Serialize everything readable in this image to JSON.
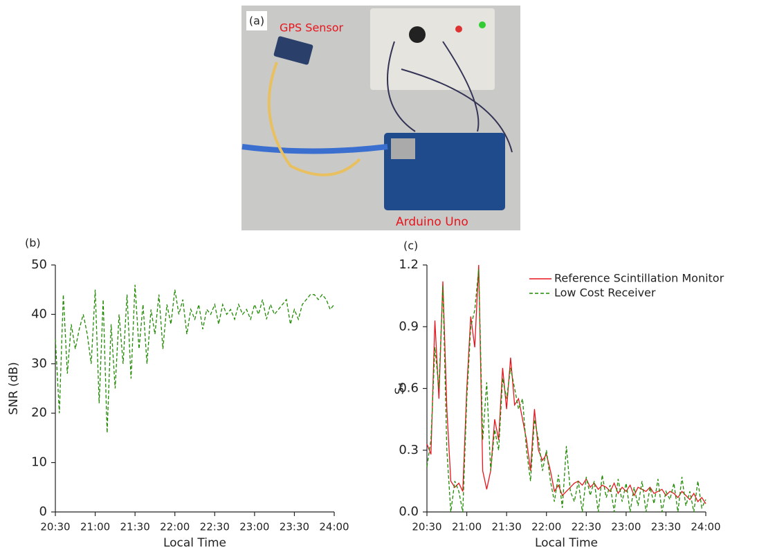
{
  "photo": {
    "panel_label": "(a)",
    "labels": [
      "GPS Sensor",
      "Arduino Uno"
    ]
  },
  "chart_data": [
    {
      "type": "line",
      "panel_label": "(b)",
      "x_label": "Local Time",
      "y_label": "SNR (dB)",
      "x": [
        20.5,
        20.55,
        20.6,
        20.65,
        20.7,
        20.75,
        20.8,
        20.85,
        20.9,
        20.95,
        21.0,
        21.05,
        21.1,
        21.15,
        21.2,
        21.25,
        21.3,
        21.35,
        21.4,
        21.45,
        21.5,
        21.55,
        21.6,
        21.65,
        21.7,
        21.75,
        21.8,
        21.85,
        21.9,
        21.95,
        22.0,
        22.05,
        22.1,
        22.15,
        22.2,
        22.25,
        22.3,
        22.35,
        22.4,
        22.45,
        22.5,
        22.55,
        22.6,
        22.65,
        22.7,
        22.75,
        22.8,
        22.85,
        22.9,
        22.95,
        23.0,
        23.05,
        23.1,
        23.15,
        23.2,
        23.25,
        23.3,
        23.35,
        23.4,
        23.45,
        23.5,
        23.55,
        23.6,
        23.65,
        23.7,
        23.75,
        23.8,
        23.85,
        23.9,
        23.95,
        24.0
      ],
      "series": [
        {
          "color": "#1e8a00",
          "line_style": "dashed",
          "values": [
            35,
            20,
            44,
            28,
            38,
            33,
            37,
            40,
            36,
            30,
            45,
            22,
            43,
            16,
            38,
            25,
            40,
            30,
            44,
            27,
            46,
            33,
            42,
            30,
            41,
            36,
            44,
            33,
            42,
            38,
            45,
            40,
            43,
            36,
            41,
            39,
            42,
            37,
            41,
            40,
            42,
            38,
            42,
            40,
            41,
            39,
            42,
            40,
            41,
            39,
            42,
            40,
            43,
            39,
            42,
            40,
            41,
            42,
            43,
            38,
            41,
            39,
            42,
            43,
            44,
            44,
            43,
            44,
            43,
            41,
            42
          ]
        }
      ],
      "xlim": [
        20.5,
        24
      ],
      "ylim": [
        0,
        50
      ],
      "xticks": [
        {
          "value": 20.5,
          "label": "20:30"
        },
        {
          "value": 21,
          "label": "21:00"
        },
        {
          "value": 21.5,
          "label": "21:30"
        },
        {
          "value": 22,
          "label": "22:00"
        },
        {
          "value": 22.5,
          "label": "22:30"
        },
        {
          "value": 23,
          "label": "23:00"
        },
        {
          "value": 23.5,
          "label": "23:30"
        },
        {
          "value": 24,
          "label": "24:00"
        }
      ],
      "yticks": [
        0,
        10,
        20,
        30,
        40,
        50
      ]
    },
    {
      "type": "line",
      "panel_label": "(c)",
      "x_label": "Local Time",
      "y_label": "S₄",
      "legend": "upper right",
      "x": [
        20.5,
        20.55,
        20.6,
        20.65,
        20.7,
        20.75,
        20.8,
        20.85,
        20.9,
        20.95,
        21.0,
        21.05,
        21.1,
        21.15,
        21.2,
        21.25,
        21.3,
        21.35,
        21.4,
        21.45,
        21.5,
        21.55,
        21.6,
        21.65,
        21.7,
        21.75,
        21.8,
        21.85,
        21.9,
        21.95,
        22.0,
        22.05,
        22.1,
        22.15,
        22.2,
        22.25,
        22.3,
        22.35,
        22.4,
        22.45,
        22.5,
        22.55,
        22.6,
        22.65,
        22.7,
        22.75,
        22.8,
        22.85,
        22.9,
        22.95,
        23.0,
        23.05,
        23.1,
        23.15,
        23.2,
        23.25,
        23.3,
        23.35,
        23.4,
        23.45,
        23.5,
        23.55,
        23.6,
        23.65,
        23.7,
        23.75,
        23.8,
        23.85,
        23.9,
        23.95,
        24.0
      ],
      "series": [
        {
          "name": "Reference Scintillation Monitor",
          "color": "#e8141c",
          "line_style": "solid",
          "values": [
            0.33,
            0.28,
            0.93,
            0.55,
            1.12,
            0.5,
            0.15,
            0.12,
            0.14,
            0.1,
            0.6,
            0.95,
            0.8,
            1.2,
            0.2,
            0.11,
            0.2,
            0.45,
            0.35,
            0.7,
            0.5,
            0.75,
            0.52,
            0.55,
            0.45,
            0.35,
            0.2,
            0.5,
            0.3,
            0.25,
            0.28,
            0.2,
            0.1,
            0.13,
            0.08,
            0.1,
            0.12,
            0.14,
            0.15,
            0.13,
            0.16,
            0.12,
            0.14,
            0.11,
            0.13,
            0.12,
            0.1,
            0.14,
            0.09,
            0.12,
            0.1,
            0.13,
            0.08,
            0.12,
            0.11,
            0.1,
            0.12,
            0.09,
            0.1,
            0.11,
            0.08,
            0.1,
            0.09,
            0.07,
            0.1,
            0.08,
            0.06,
            0.09,
            0.05,
            0.07,
            0.04
          ]
        },
        {
          "name": "Low Cost Receiver",
          "color": "#1e8a00",
          "line_style": "dashed",
          "values": [
            0.22,
            0.35,
            0.8,
            0.6,
            1.1,
            0.3,
            0.0,
            0.15,
            0.1,
            0.0,
            0.55,
            0.9,
            0.98,
            1.18,
            0.35,
            0.63,
            0.2,
            0.4,
            0.3,
            0.65,
            0.55,
            0.7,
            0.6,
            0.5,
            0.55,
            0.3,
            0.15,
            0.45,
            0.35,
            0.2,
            0.3,
            0.15,
            0.05,
            0.18,
            0.02,
            0.32,
            0.1,
            0.05,
            0.15,
            0.0,
            0.17,
            0.08,
            0.15,
            0.0,
            0.18,
            0.07,
            0.13,
            0.0,
            0.16,
            0.05,
            0.14,
            0.0,
            0.12,
            0.03,
            0.15,
            0.0,
            0.12,
            0.04,
            0.16,
            0.0,
            0.1,
            0.06,
            0.14,
            0.0,
            0.17,
            0.03,
            0.1,
            0.0,
            0.15,
            0.02,
            0.06
          ]
        }
      ],
      "xlim": [
        20.5,
        24
      ],
      "ylim": [
        0,
        1.2
      ],
      "xticks": [
        {
          "value": 20.5,
          "label": "20:30"
        },
        {
          "value": 21,
          "label": "21:00"
        },
        {
          "value": 21.5,
          "label": "21:30"
        },
        {
          "value": 22,
          "label": "22:00"
        },
        {
          "value": 22.5,
          "label": "22:30"
        },
        {
          "value": 23,
          "label": "23:00"
        },
        {
          "value": 23.5,
          "label": "23:30"
        },
        {
          "value": 24,
          "label": "24:00"
        }
      ],
      "yticks": [
        {
          "value": 0,
          "label": "0.0"
        },
        0.3,
        0.6,
        0.9,
        1.2
      ]
    }
  ]
}
